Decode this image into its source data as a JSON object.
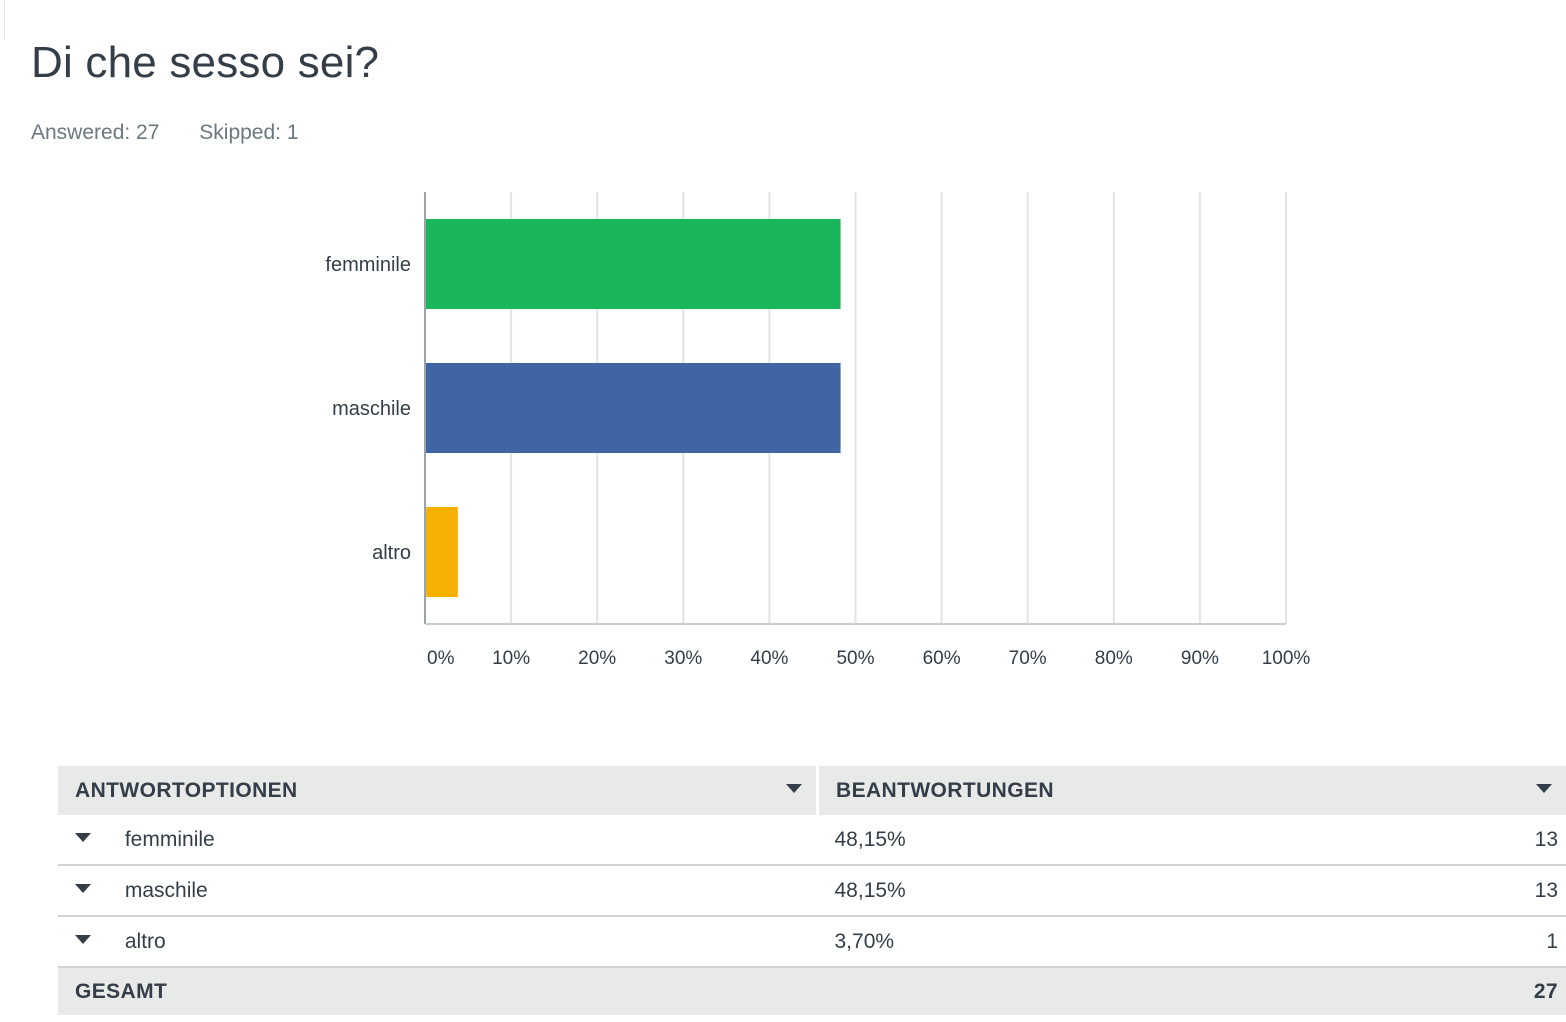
{
  "question": {
    "title": "Di che sesso sei?",
    "answered": "Answered: 27",
    "skipped": "Skipped: 1"
  },
  "chart_data": {
    "type": "bar",
    "orientation": "horizontal",
    "categories": [
      "femminile",
      "maschile",
      "altro"
    ],
    "values": [
      48.15,
      48.15,
      3.7
    ],
    "colors": [
      "#1ab65c",
      "#3f65a4",
      "#f6b107"
    ],
    "xlim": [
      0,
      100
    ],
    "x_ticks": [
      "0%",
      "10%",
      "20%",
      "30%",
      "40%",
      "50%",
      "60%",
      "70%",
      "80%",
      "90%",
      "100%"
    ],
    "grid": "vertical"
  },
  "table": {
    "headers": {
      "options": "ANTWORTOPTIONEN",
      "responses": "BEANTWORTUNGEN"
    },
    "rows": [
      {
        "label": "femminile",
        "percent": "48,15%",
        "count": "13"
      },
      {
        "label": "maschile",
        "percent": "48,15%",
        "count": "13"
      },
      {
        "label": "altro",
        "percent": "3,70%",
        "count": "1"
      }
    ],
    "total": {
      "label": "GESAMT",
      "count": "27"
    }
  }
}
